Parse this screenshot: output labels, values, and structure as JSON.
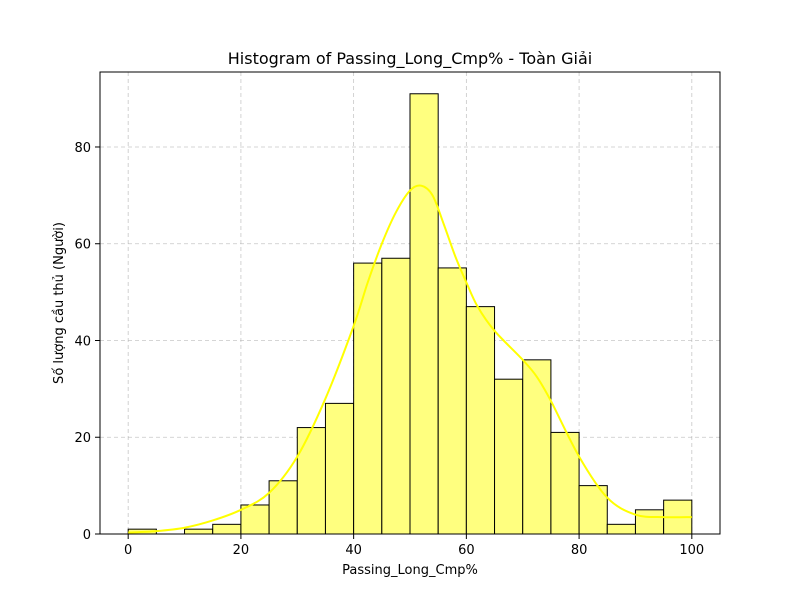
{
  "chart_data": {
    "type": "bar",
    "subtype": "histogram",
    "title": "Histogram of Passing_Long_Cmp% - Toàn Giải",
    "xlabel": "Passing_Long_Cmp%",
    "ylabel": "Số lượng cầu thủ (Người)",
    "xlim": [
      -5,
      105
    ],
    "ylim": [
      0,
      95.5
    ],
    "xticks": [
      0,
      20,
      40,
      60,
      80,
      100
    ],
    "yticks": [
      0,
      20,
      40,
      60,
      80
    ],
    "grid": true,
    "bin_edges": [
      0,
      5,
      10,
      15,
      20,
      25,
      30,
      35,
      40,
      45,
      50,
      55,
      60,
      65,
      70,
      75,
      80,
      85,
      90,
      95,
      100
    ],
    "counts": [
      1,
      0,
      1,
      2,
      6,
      11,
      22,
      27,
      56,
      57,
      91,
      55,
      47,
      32,
      36,
      21,
      10,
      2,
      5,
      7
    ],
    "bar_color": "#ffff7f",
    "bar_edge_color": "#000000",
    "kde": {
      "color": "#ffff00",
      "x": [
        0,
        5,
        10,
        15,
        20,
        25,
        30,
        35,
        40,
        42.5,
        45,
        47.5,
        50,
        52,
        54,
        56,
        58,
        60,
        62,
        65,
        70,
        72.5,
        75,
        80,
        85,
        90,
        95,
        100
      ],
      "y": [
        0.3,
        0.6,
        1.3,
        2.8,
        5.0,
        8.5,
        16,
        28,
        43,
        52,
        60,
        66.5,
        71,
        72,
        70,
        64,
        57.5,
        52,
        47,
        42,
        36,
        32.5,
        27.5,
        16,
        7.5,
        4,
        3.5,
        3.5
      ]
    }
  }
}
